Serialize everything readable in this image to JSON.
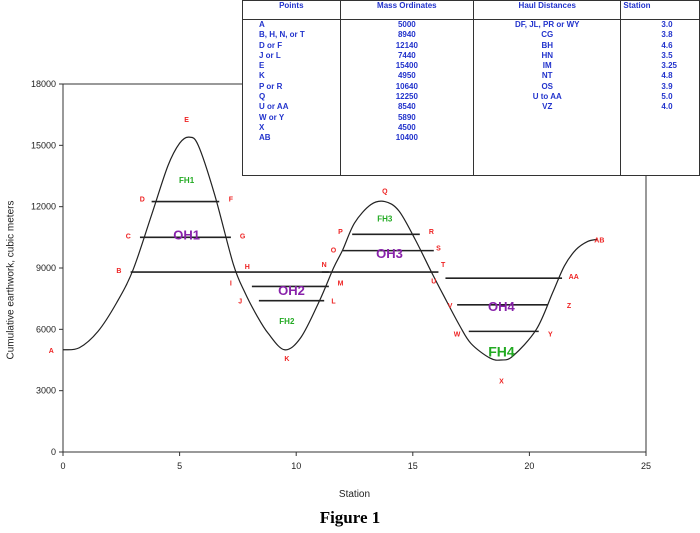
{
  "table": {
    "headers": [
      "Points",
      "Mass Ordinates",
      "Haul Distances",
      "Station"
    ],
    "points": [
      "A",
      "B, H, N, or T",
      "D or F",
      "J or L",
      "E",
      "K",
      "P or R",
      "Q",
      "U or AA",
      "W or Y",
      "X",
      "AB"
    ],
    "mass_ordinates": [
      "5000",
      "8940",
      "12140",
      "7440",
      "15400",
      "4950",
      "10640",
      "12250",
      "8540",
      "5890",
      "4500",
      "10400"
    ],
    "hauls": [
      "DF, JL, PR or WY",
      "CG",
      "BH",
      "HN",
      "IM",
      "NT",
      "OS",
      "U to AA",
      "VZ"
    ],
    "stations": [
      "3.0",
      "3.8",
      "4.6",
      "3.5",
      "3.25",
      "4.8",
      "3.9",
      "5.0",
      "4.0"
    ]
  },
  "chart_data": {
    "type": "line",
    "title": "",
    "xlabel": "Station",
    "ylabel": "Cumulative earthwork, cubic meters",
    "xlim": [
      0,
      25
    ],
    "ylim": [
      0,
      18000
    ],
    "xticks": [
      "0",
      "5",
      "10",
      "15",
      "20",
      "25"
    ],
    "yticks": [
      "0",
      "3000",
      "6000",
      "9000",
      "12000",
      "15000",
      "18000"
    ],
    "grid": false,
    "curve": {
      "x": [
        0,
        0.7,
        1.5,
        2.3,
        3.0,
        3.8,
        4.5,
        5.0,
        5.4,
        5.8,
        6.5,
        7.3,
        7.8,
        8.3,
        8.8,
        9.5,
        10.2,
        11.0,
        11.6,
        12.0,
        12.5,
        13.2,
        13.8,
        14.4,
        15.1,
        15.8,
        16.3,
        17.0,
        17.5,
        18.3,
        18.8,
        19.3,
        20.3,
        21.0,
        21.5,
        22.0,
        22.5,
        22.9
      ],
      "y": [
        5000,
        5100,
        5900,
        7300,
        8900,
        11600,
        14000,
        15100,
        15400,
        15000,
        12600,
        9200,
        7800,
        6700,
        5800,
        5000,
        5600,
        7400,
        9000,
        9900,
        11200,
        12100,
        12250,
        11800,
        10400,
        8800,
        7700,
        6200,
        5300,
        4600,
        4500,
        4700,
        6000,
        7800,
        9100,
        9900,
        10300,
        10400
      ]
    },
    "balance_lines": [
      {
        "y": 12250,
        "x": [
          3.8,
          6.7
        ]
      },
      {
        "y": 10500,
        "x": [
          3.3,
          7.2
        ]
      },
      {
        "y": 8800,
        "x": [
          2.9,
          11.4
        ]
      },
      {
        "y": 8100,
        "x": [
          8.1,
          11.4
        ]
      },
      {
        "y": 7400,
        "x": [
          8.4,
          11.2
        ]
      },
      {
        "y": 10650,
        "x": [
          12.4,
          15.3
        ]
      },
      {
        "y": 9850,
        "x": [
          12.0,
          15.9
        ]
      },
      {
        "y": 8800,
        "x": [
          11.1,
          16.1
        ]
      },
      {
        "y": 8500,
        "x": [
          16.4,
          21.4
        ]
      },
      {
        "y": 7200,
        "x": [
          16.9,
          20.8
        ]
      },
      {
        "y": 5900,
        "x": [
          17.4,
          20.4
        ]
      }
    ],
    "point_labels": [
      {
        "t": "A",
        "x": -0.5,
        "y": 5000
      },
      {
        "t": "B",
        "x": 2.4,
        "y": 8900
      },
      {
        "t": "C",
        "x": 2.8,
        "y": 10600
      },
      {
        "t": "D",
        "x": 3.4,
        "y": 12400
      },
      {
        "t": "E",
        "x": 5.3,
        "y": 16300
      },
      {
        "t": "F",
        "x": 7.2,
        "y": 12400
      },
      {
        "t": "G",
        "x": 7.7,
        "y": 10600
      },
      {
        "t": "H",
        "x": 7.9,
        "y": 9100
      },
      {
        "t": "I",
        "x": 7.2,
        "y": 8300
      },
      {
        "t": "J",
        "x": 7.6,
        "y": 7400
      },
      {
        "t": "K",
        "x": 9.6,
        "y": 4600
      },
      {
        "t": "L",
        "x": 11.6,
        "y": 7400
      },
      {
        "t": "M",
        "x": 11.9,
        "y": 8300
      },
      {
        "t": "N",
        "x": 11.2,
        "y": 9200
      },
      {
        "t": "O",
        "x": 11.6,
        "y": 9900
      },
      {
        "t": "P",
        "x": 11.9,
        "y": 10800
      },
      {
        "t": "Q",
        "x": 13.8,
        "y": 12800
      },
      {
        "t": "R",
        "x": 15.8,
        "y": 10800
      },
      {
        "t": "S",
        "x": 16.1,
        "y": 10000
      },
      {
        "t": "T",
        "x": 16.3,
        "y": 9200
      },
      {
        "t": "U",
        "x": 15.9,
        "y": 8400
      },
      {
        "t": "V",
        "x": 16.6,
        "y": 7200
      },
      {
        "t": "W",
        "x": 16.9,
        "y": 5800
      },
      {
        "t": "X",
        "x": 18.8,
        "y": 3500
      },
      {
        "t": "Y",
        "x": 20.9,
        "y": 5800
      },
      {
        "t": "Z",
        "x": 21.7,
        "y": 7200
      },
      {
        "t": "AA",
        "x": 21.9,
        "y": 8600
      },
      {
        "t": "AB",
        "x": 23.0,
        "y": 10400
      }
    ],
    "region_labels": [
      {
        "t": "FH1",
        "x": 5.3,
        "y": 13300,
        "color": "#22aa22",
        "size": 8
      },
      {
        "t": "OH1",
        "x": 5.3,
        "y": 10600,
        "color": "#8822aa",
        "size": 13
      },
      {
        "t": "OH2",
        "x": 9.8,
        "y": 7900,
        "color": "#8822aa",
        "size": 13
      },
      {
        "t": "FH2",
        "x": 9.6,
        "y": 6400,
        "color": "#22aa22",
        "size": 8
      },
      {
        "t": "FH3",
        "x": 13.8,
        "y": 11400,
        "color": "#22aa22",
        "size": 8
      },
      {
        "t": "OH3",
        "x": 14.0,
        "y": 9700,
        "color": "#8822aa",
        "size": 13
      },
      {
        "t": "OH4",
        "x": 18.8,
        "y": 7100,
        "color": "#8822aa",
        "size": 13
      },
      {
        "t": "FH4",
        "x": 18.8,
        "y": 4900,
        "color": "#22aa22",
        "size": 14
      }
    ]
  },
  "caption": "Figure 1",
  "colors": {
    "point_label": "#ee2222",
    "table_text": "#2233cc"
  }
}
